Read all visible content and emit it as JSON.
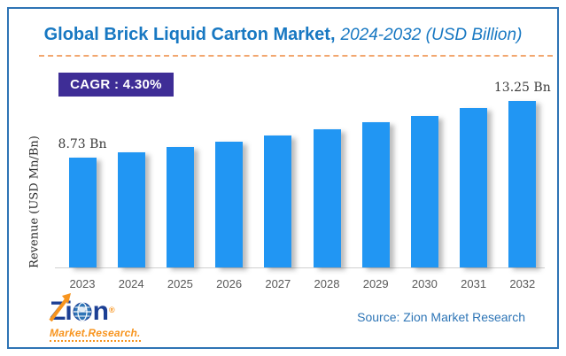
{
  "title": {
    "main": "Global Brick Liquid Carton Market,",
    "subtitle": "2024-2032 (USD Billion)"
  },
  "cagr_badge": "CAGR : 4.30%",
  "y_axis_label": "Revenue (USD Mn/Bn)",
  "source_text": "Source: Zion Market Research",
  "logo": {
    "part_z": "Z",
    "part_i": "i",
    "part_n": "n",
    "registered": "®",
    "tagline": "Market.Research."
  },
  "colors": {
    "frame_border": "#2e74b5",
    "title_blue": "#1878c2",
    "dashed_separator": "#f2a76f",
    "cagr_badge_bg": "#3e2d96",
    "bar_blue": "#2196f3",
    "source_blue": "#2e75b6",
    "logo_navy": "#1c3f94",
    "logo_orange": "#f7941e",
    "axis_text_gray": "#595959"
  },
  "chart_data": {
    "type": "bar",
    "title": "Global Brick Liquid Carton Market, 2024-2032 (USD Billion)",
    "xlabel": "",
    "ylabel": "Revenue (USD Mn/Bn)",
    "categories": [
      "2023",
      "2024",
      "2025",
      "2026",
      "2027",
      "2028",
      "2029",
      "2030",
      "2031",
      "2032"
    ],
    "values": [
      8.73,
      9.14,
      9.58,
      10.03,
      10.51,
      11.0,
      11.53,
      12.07,
      12.65,
      13.25
    ],
    "value_labels": {
      "2023": "8.73 Bn",
      "2032": "13.25 Bn"
    },
    "unit": "USD Billion",
    "cagr": "4.30%",
    "ylim": [
      0,
      14
    ],
    "grid": false,
    "legend": "none",
    "bar_color": "#2196f3"
  }
}
